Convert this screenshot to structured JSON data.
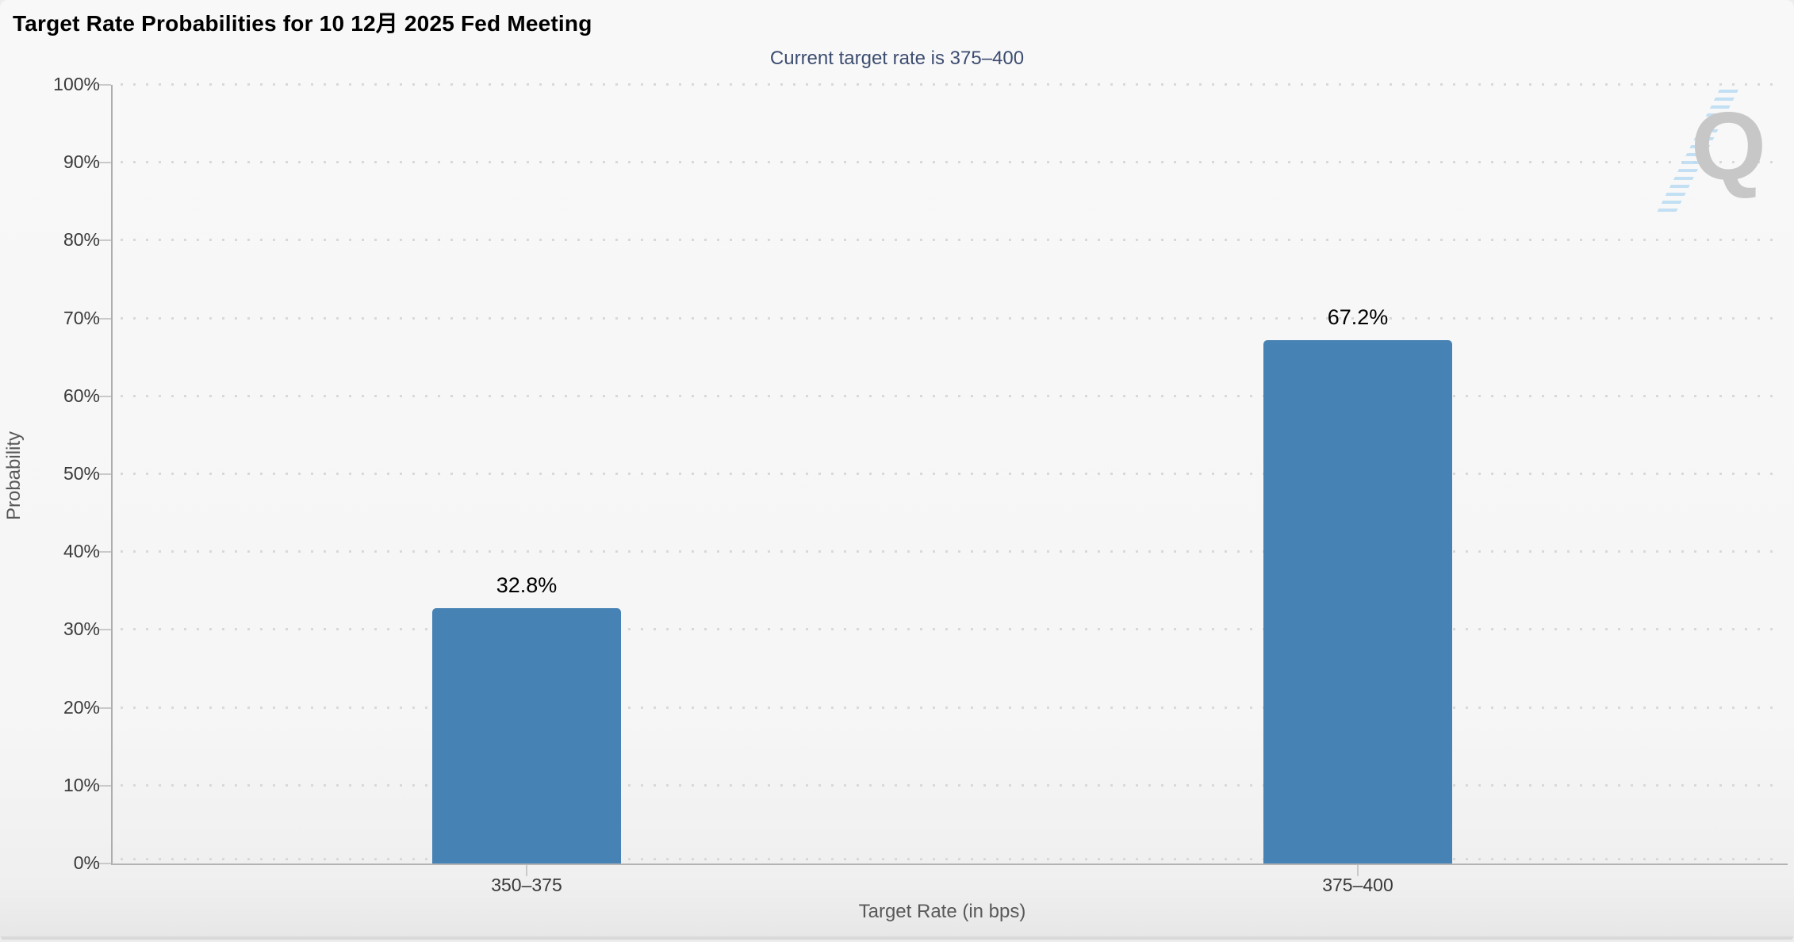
{
  "header": {
    "title": "Target Rate Probabilities for 10 12月 2025 Fed Meeting",
    "menu_icon": "hamburger-icon"
  },
  "chart_data": {
    "type": "bar",
    "title": "Target Rate Probabilities for 10 12月 2025 Fed Meeting",
    "subtitle": "Current target rate is 375–400",
    "categories": [
      "350–375",
      "375–400"
    ],
    "values": [
      32.8,
      67.2
    ],
    "value_labels": [
      "32.8%",
      "67.2%"
    ],
    "xlabel": "Target Rate (in bps)",
    "ylabel": "Probability",
    "ylim": [
      0,
      100
    ],
    "ytick_step": 10,
    "ytick_labels": [
      "0%",
      "10%",
      "20%",
      "30%",
      "40%",
      "50%",
      "60%",
      "70%",
      "80%",
      "90%",
      "100%"
    ],
    "grid": "dotted-horizontal",
    "legend": "none",
    "colors": {
      "bar": "#4682b4",
      "subtitle_text": "#3d4d71",
      "title_text": "#000000",
      "axis_labels": "#3a3a3a",
      "axis_titles": "#595959",
      "watermark_q": "#c7c7c7",
      "watermark_hatch": "#b9dbf2"
    },
    "watermark_letter": "Q"
  }
}
